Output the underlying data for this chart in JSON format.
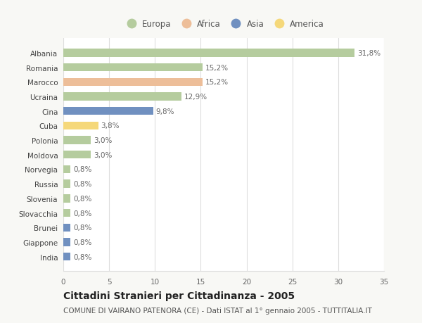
{
  "categories": [
    "Albania",
    "Romania",
    "Marocco",
    "Ucraina",
    "Cina",
    "Cuba",
    "Polonia",
    "Moldova",
    "Norvegia",
    "Russia",
    "Slovenia",
    "Slovacchia",
    "Brunei",
    "Giappone",
    "India"
  ],
  "values": [
    31.8,
    15.2,
    15.2,
    12.9,
    9.8,
    3.8,
    3.0,
    3.0,
    0.8,
    0.8,
    0.8,
    0.8,
    0.8,
    0.8,
    0.8
  ],
  "labels": [
    "31,8%",
    "15,2%",
    "15,2%",
    "12,9%",
    "9,8%",
    "3,8%",
    "3,0%",
    "3,0%",
    "0,8%",
    "0,8%",
    "0,8%",
    "0,8%",
    "0,8%",
    "0,8%",
    "0,8%"
  ],
  "continents": [
    "Europa",
    "Europa",
    "Africa",
    "Europa",
    "Asia",
    "America",
    "Europa",
    "Europa",
    "Europa",
    "Europa",
    "Europa",
    "Europa",
    "Asia",
    "Asia",
    "Asia"
  ],
  "continent_colors": {
    "Europa": "#b5cc9e",
    "Africa": "#edbe99",
    "Asia": "#7090c0",
    "America": "#f5d87a"
  },
  "xlim": [
    0,
    35
  ],
  "xticks": [
    0,
    5,
    10,
    15,
    20,
    25,
    30,
    35
  ],
  "title": "Cittadini Stranieri per Cittadinanza - 2005",
  "subtitle": "COMUNE DI VAIRANO PATENORA (CE) - Dati ISTAT al 1° gennaio 2005 - TUTTITALIA.IT",
  "background_color": "#f8f8f5",
  "bar_background": "#ffffff",
  "grid_color": "#dddddd",
  "title_fontsize": 10,
  "subtitle_fontsize": 7.5,
  "label_fontsize": 7.5,
  "tick_fontsize": 7.5,
  "legend_fontsize": 8.5
}
